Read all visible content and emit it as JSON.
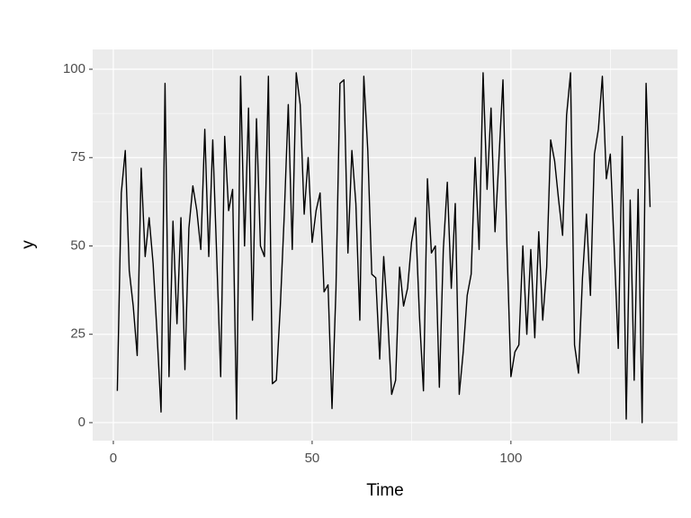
{
  "chart_data": {
    "type": "line",
    "x_label": "Time",
    "y_label": "y",
    "x": [
      1,
      2,
      3,
      4,
      5,
      6,
      7,
      8,
      9,
      10,
      11,
      12,
      13,
      14,
      15,
      16,
      17,
      18,
      19,
      20,
      21,
      22,
      23,
      24,
      25,
      26,
      27,
      28,
      29,
      30,
      31,
      32,
      33,
      34,
      35,
      36,
      37,
      38,
      39,
      40,
      41,
      42,
      43,
      44,
      45,
      46,
      47,
      48,
      49,
      50,
      51,
      52,
      53,
      54,
      55,
      56,
      57,
      58,
      59,
      60,
      61,
      62,
      63,
      64,
      65,
      66,
      67,
      68,
      69,
      70,
      71,
      72,
      73,
      74,
      75,
      76,
      77,
      78,
      79,
      80,
      81,
      82,
      83,
      84,
      85,
      86,
      87,
      88,
      89,
      90,
      91,
      92,
      93,
      94,
      95,
      96,
      97,
      98,
      99,
      100,
      101,
      102,
      103,
      104,
      105,
      106,
      107,
      108,
      109,
      110,
      111,
      112,
      113,
      114,
      115,
      116,
      117,
      118,
      119,
      120,
      121,
      122,
      123,
      124,
      125,
      126,
      127,
      128,
      129,
      130,
      131,
      132,
      133,
      134,
      135
    ],
    "series": [
      {
        "color": "#000000",
        "values": [
          9,
          65,
          77,
          43,
          33,
          19,
          72,
          47,
          58,
          45,
          25,
          3,
          96,
          13,
          57,
          28,
          58,
          15,
          55,
          67,
          60,
          49,
          83,
          47,
          80,
          47,
          13,
          81,
          60,
          66,
          1,
          98,
          50,
          89,
          29,
          86,
          50,
          47,
          98,
          11,
          12,
          33,
          59,
          90,
          49,
          99,
          90,
          59,
          75,
          51,
          60,
          65,
          37,
          39,
          4,
          38,
          96,
          97,
          48,
          77,
          62,
          29,
          98,
          77,
          42,
          41,
          18,
          47,
          30,
          8,
          12,
          44,
          33,
          38,
          51,
          58,
          30,
          9,
          69,
          48,
          50,
          10,
          49,
          68,
          38,
          62,
          8,
          20,
          36,
          42,
          75,
          49,
          99,
          66,
          89,
          54,
          75,
          97,
          50,
          13,
          20,
          22,
          50,
          25,
          49,
          24,
          54,
          29,
          44,
          80,
          74,
          63,
          53,
          87,
          99,
          22,
          14,
          41,
          59,
          36,
          76,
          83,
          98,
          69,
          76,
          49,
          21,
          81,
          1,
          63,
          12,
          66,
          0,
          96,
          61
        ]
      }
    ],
    "xlim": [
      -5.2,
      141.9
    ],
    "ylim": [
      -5.1,
      105.6
    ],
    "xticks": [
      0,
      50,
      100
    ],
    "yticks": [
      0,
      25,
      50,
      75,
      100
    ],
    "grid": true,
    "panel_color": "#EBEBEB"
  }
}
